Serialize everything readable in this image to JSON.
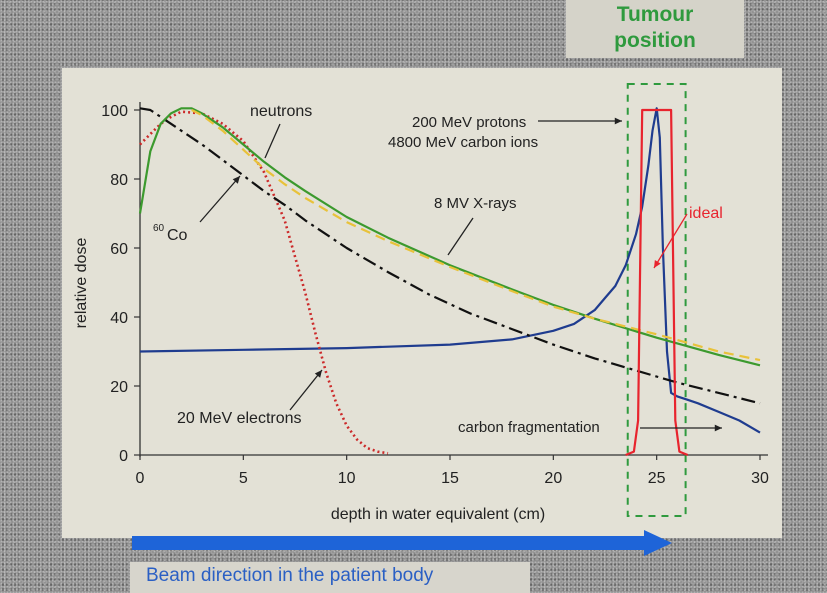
{
  "tumour_label_line1": "Tumour",
  "tumour_label_line2": "position",
  "beam_label": "Beam direction in the patient body",
  "colors": {
    "xray": "#3c9a2e",
    "neutron": "#e8c23a",
    "co60": "#111111",
    "electron": "#cc2a2a",
    "proton": "#1f3c8f",
    "ideal": "#e8242e",
    "tumour_box": "#2f9a3e",
    "beam_arrow": "#1e64d8"
  },
  "chart_data": {
    "type": "line",
    "xlabel": "depth in water equivalent (cm)",
    "ylabel": "relative dose",
    "xlim": [
      0,
      30
    ],
    "ylim": [
      0,
      105
    ],
    "x_ticks": [
      "0",
      "5",
      "10",
      "15",
      "20",
      "25",
      "30"
    ],
    "y_ticks": [
      "0",
      "20",
      "40",
      "60",
      "80",
      "100"
    ],
    "tumour_region": [
      23.6,
      26.4
    ],
    "series": [
      {
        "name": "8 MV X-rays",
        "style": "solid",
        "color": "#3c9a2e",
        "x": [
          0,
          0.5,
          1,
          1.5,
          2,
          2.5,
          3,
          4,
          5,
          6,
          7,
          8,
          10,
          12,
          15,
          18,
          20,
          22,
          25,
          28,
          30
        ],
        "y": [
          70,
          88,
          96,
          99,
          100.5,
          100.5,
          99,
          95,
          90,
          85,
          80.5,
          76.5,
          69,
          63,
          55,
          48,
          43.5,
          39.5,
          34,
          29,
          26
        ]
      },
      {
        "name": "neutrons",
        "style": "dashed",
        "color": "#e8c23a",
        "x": [
          2.5,
          3,
          4,
          5,
          6,
          7,
          8,
          10,
          12,
          15,
          18,
          20,
          22,
          25,
          28,
          30
        ],
        "y": [
          100,
          98.5,
          94,
          88.5,
          83,
          78.5,
          74.5,
          67.5,
          62,
          54.5,
          47.5,
          43,
          39.5,
          35,
          30,
          27.5
        ]
      },
      {
        "name": "60Co",
        "style": "dashdot",
        "color": "#111111",
        "x": [
          0,
          0.5,
          1,
          2,
          3,
          4,
          5,
          6,
          7,
          8,
          10,
          12,
          14,
          16,
          18,
          20,
          22,
          24,
          26,
          28,
          30
        ],
        "y": [
          100.5,
          100,
          98,
          94,
          90,
          85.5,
          81,
          76.5,
          72.5,
          68,
          60,
          53,
          46.5,
          41,
          36.5,
          32,
          28,
          24.5,
          21,
          18,
          15
        ]
      },
      {
        "name": "20 MeV electrons",
        "style": "dotted",
        "color": "#cc2a2a",
        "x": [
          0,
          0.5,
          1,
          1.5,
          2,
          3,
          4,
          5,
          6,
          7,
          8,
          8.5,
          9,
          9.5,
          10,
          10.5,
          11,
          11.5,
          12
        ],
        "y": [
          90,
          93,
          96,
          98,
          99.5,
          99,
          96,
          91,
          82,
          68,
          47,
          35,
          24,
          15,
          8.5,
          4.5,
          2,
          1,
          0.5
        ]
      },
      {
        "name": "200 MeV protons / 4800 MeV carbon ions",
        "style": "solid",
        "color": "#1f3c8f",
        "x": [
          0,
          5,
          10,
          15,
          18,
          20,
          21,
          22,
          22.5,
          23,
          23.5,
          24,
          24.3,
          24.6,
          24.8,
          25,
          25.15,
          25.3,
          25.5,
          25.7,
          26,
          26.5,
          27,
          28,
          29,
          30
        ],
        "y": [
          30,
          30.5,
          31,
          32,
          33.5,
          36,
          38,
          42,
          45.5,
          49,
          55,
          64,
          72,
          84,
          94,
          100.5,
          92,
          60,
          30,
          18,
          17,
          16,
          15,
          12.5,
          10,
          6.5
        ]
      },
      {
        "name": "ideal",
        "style": "solid",
        "color": "#e8242e",
        "x": [
          23.5,
          23.9,
          24.1,
          24.3,
          25.7,
          25.9,
          26.1,
          26.5
        ],
        "y": [
          0,
          1,
          10,
          100,
          100,
          10,
          1,
          0
        ]
      }
    ],
    "annotations": {
      "neutrons": "neutrons",
      "protons_line1": "200 MeV protons",
      "protons_line2": "4800 MeV carbon ions",
      "xrays": "8 MV X-rays",
      "co60_super": "60",
      "co60_main": "Co",
      "ideal": "ideal",
      "electrons": "20 MeV electrons",
      "carbon_frag": "carbon fragmentation"
    }
  }
}
